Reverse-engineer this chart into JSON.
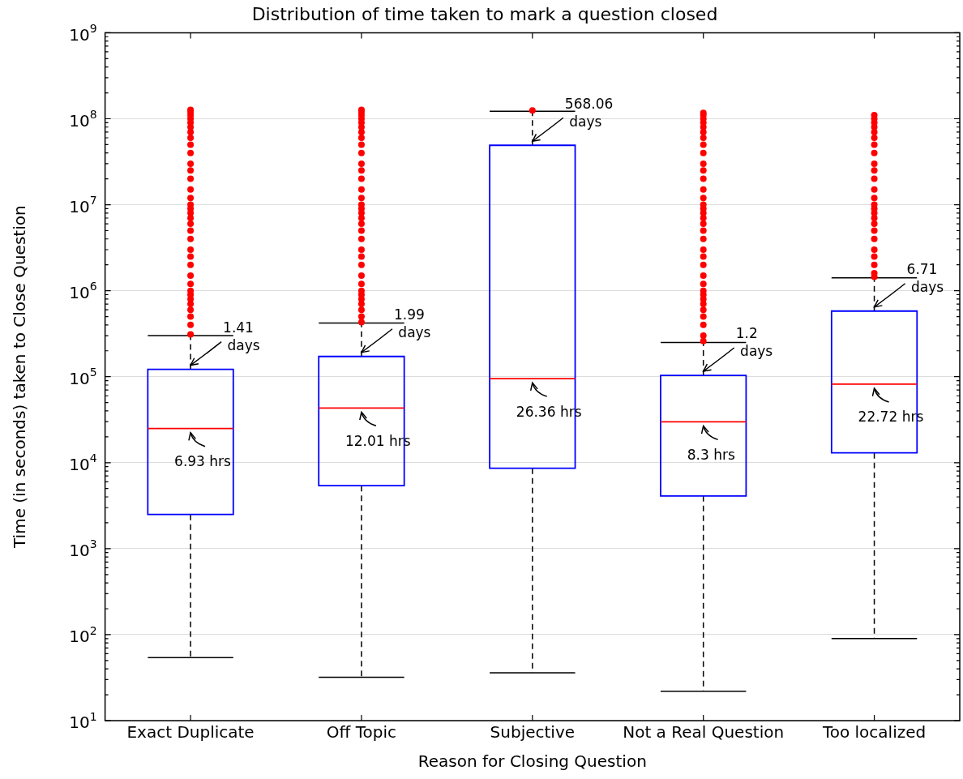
{
  "chart_data": {
    "type": "box",
    "title": "Distribution of time taken to mark a question closed",
    "xlabel": "Reason for Closing Question",
    "ylabel": "Time (in seconds) taken to Close Question",
    "categories": [
      "Exact Duplicate",
      "Off Topic",
      "Subjective",
      "Not a Real Question",
      "Too localized"
    ],
    "color": "#0000ff",
    "log": true,
    "grid": "y",
    "ylim": [
      10,
      1000000000
    ],
    "yticks": [
      {
        "value": 10,
        "label": "10$^{1}$"
      },
      {
        "value": 100,
        "label": "10$^{2}$"
      },
      {
        "value": 1000,
        "label": "10$^{3}$"
      },
      {
        "value": 10000,
        "label": "10$^{4}$"
      },
      {
        "value": 100000,
        "label": "10$^{5}$"
      },
      {
        "value": 1000000,
        "label": "10$^{6}$"
      },
      {
        "value": 10000000,
        "label": "10$^{7}$"
      },
      {
        "value": 100000000,
        "label": "10$^{8}$"
      },
      {
        "value": 1000000000,
        "label": "10$^{9}$"
      }
    ],
    "boxes": [
      {
        "low": 54,
        "q1": 2500,
        "median": 24948,
        "q3": 121824,
        "high": 300000,
        "outliers": [
          310000,
          400000,
          500000,
          600000,
          700000,
          800000,
          900000,
          1000000,
          1200000,
          1500000,
          2000000,
          2500000,
          3000000,
          4000000,
          5000000,
          6000000,
          7000000,
          8000000,
          9000000,
          10000000,
          12000000,
          15000000,
          20000000,
          25000000,
          30000000,
          40000000,
          50000000,
          60000000,
          70000000,
          80000000,
          90000000,
          100000000,
          110000000,
          120000000,
          127000000
        ]
      },
      {
        "low": 32,
        "q1": 5400,
        "median": 43236,
        "q3": 171936,
        "high": 420000,
        "outliers": [
          430000,
          500000,
          600000,
          700000,
          800000,
          900000,
          1000000,
          1200000,
          1500000,
          2000000,
          2500000,
          3000000,
          4000000,
          5000000,
          6000000,
          7000000,
          8000000,
          9000000,
          10000000,
          12000000,
          15000000,
          20000000,
          25000000,
          30000000,
          40000000,
          50000000,
          60000000,
          70000000,
          80000000,
          90000000,
          100000000,
          110000000,
          120000000,
          127000000
        ]
      },
      {
        "low": 36,
        "q1": 8600,
        "median": 94896,
        "q3": 49080384,
        "high": 122000000,
        "outliers": [
          125000000
        ]
      },
      {
        "low": 22,
        "q1": 4100,
        "median": 29880,
        "q3": 103680,
        "high": 250000,
        "outliers": [
          260000,
          300000,
          400000,
          500000,
          600000,
          700000,
          800000,
          900000,
          1000000,
          1200000,
          1500000,
          2000000,
          2500000,
          3000000,
          4000000,
          5000000,
          6000000,
          7000000,
          8000000,
          9000000,
          10000000,
          12000000,
          15000000,
          20000000,
          25000000,
          30000000,
          40000000,
          50000000,
          60000000,
          70000000,
          80000000,
          90000000,
          100000000,
          110000000,
          117000000
        ]
      },
      {
        "low": 90,
        "q1": 13000,
        "median": 81792,
        "q3": 579744,
        "high": 1410000,
        "outliers": [
          1450000,
          1600000,
          2000000,
          2500000,
          3000000,
          4000000,
          5000000,
          6000000,
          7000000,
          8000000,
          9000000,
          10000000,
          12000000,
          15000000,
          20000000,
          25000000,
          30000000,
          40000000,
          50000000,
          60000000,
          70000000,
          80000000,
          90000000,
          100000000,
          110000000
        ]
      }
    ],
    "annotations": [
      {
        "text": "1.41 days",
        "x": "Exact Duplicate",
        "y": 121824
      },
      {
        "text": "6.93 hrs",
        "x": "Exact Duplicate",
        "y": 24948
      },
      {
        "text": "1.99 days",
        "x": "Off Topic",
        "y": 171936
      },
      {
        "text": "12.01 hrs",
        "x": "Off Topic",
        "y": 43236
      },
      {
        "text": "568.06 days",
        "x": "Subjective",
        "y": 49080384
      },
      {
        "text": "26.36 hrs",
        "x": "Subjective",
        "y": 94896
      },
      {
        "text": "1.2 days",
        "x": "Not a Real Question",
        "y": 103680
      },
      {
        "text": "8.3 hrs",
        "x": "Not a Real Question",
        "y": 29880
      },
      {
        "text": "6.71 days",
        "x": "Too localized",
        "y": 579744
      },
      {
        "text": "22.72 hrs",
        "x": "Too localized",
        "y": 81792
      }
    ]
  }
}
